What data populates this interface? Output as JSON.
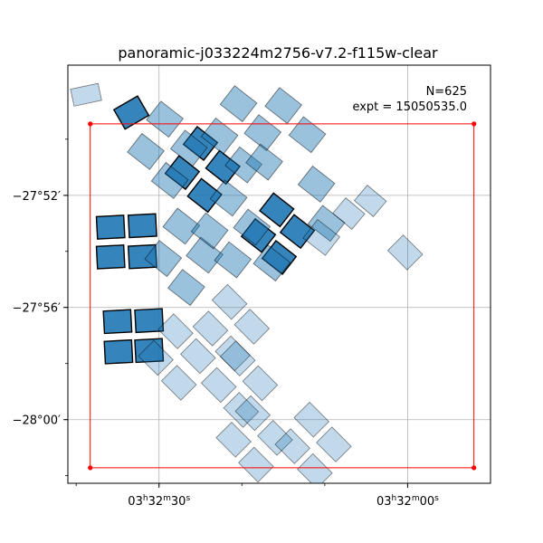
{
  "chart_data": {
    "type": "scatter",
    "title": "panoramic-j033224m2756-v7.2-f115w-clear",
    "annotation_lines": [
      "N=625",
      "expt = 15050535.0"
    ],
    "xlabel": "",
    "ylabel": "",
    "x_unit": "RA (hh:mm:ss)",
    "y_unit": "Dec (deg)",
    "xlim": [
      "03:32:41.0",
      "03:31:50.0"
    ],
    "ylim": [
      -28.0378,
      -27.7893
    ],
    "x_ticks": [
      {
        "value": "03:32:30",
        "label_html": "03<tspan baseline-shift='super' font-size='9'>h</tspan>32<tspan baseline-shift='super' font-size='9'>m</tspan>30<tspan baseline-shift='super' font-size='9'>s</tspan>"
      },
      {
        "value": "03:32:00",
        "label_html": "03<tspan baseline-shift='super' font-size='9'>h</tspan>32<tspan baseline-shift='super' font-size='9'>m</tspan>00<tspan baseline-shift='super' font-size='9'>s</tspan>"
      }
    ],
    "y_ticks": [
      {
        "value": -27.8667,
        "label": "−27°52′"
      },
      {
        "value": -27.9333,
        "label": "−27°56′"
      },
      {
        "value": -28.0,
        "label": "−28°00′"
      }
    ],
    "grid": true,
    "colors": {
      "footprint": "#1f77b4",
      "footprint_edge": "#000000",
      "boundary": "#ff0000",
      "grid": "#b0b0b0"
    },
    "boundary_box": {
      "corners": [
        {
          "x": "03:32:38.3",
          "y": -27.8242
        },
        {
          "x": "03:31:52.0",
          "y": -27.8242
        },
        {
          "x": "03:31:52.0",
          "y": -28.0286
        },
        {
          "x": "03:32:38.3",
          "y": -28.0286
        }
      ]
    },
    "series": [
      {
        "group": "dense-highlighted",
        "opacity": 0.9,
        "edge_width": 1.4,
        "footprints": [
          {
            "ra_s": 33.35,
            "dec": -27.8175,
            "size_s": 3.3,
            "size_dec": 0.0133,
            "angle": -30
          },
          {
            "ra_s": 35.85,
            "dec": -27.8856,
            "size_s": 3.3,
            "size_dec": 0.0133,
            "angle": -3
          },
          {
            "ra_s": 32.0,
            "dec": -27.8847,
            "size_s": 3.3,
            "size_dec": 0.0133,
            "angle": -3
          },
          {
            "ra_s": 35.85,
            "dec": -27.9033,
            "size_s": 3.3,
            "size_dec": 0.0133,
            "angle": -3
          },
          {
            "ra_s": 32.0,
            "dec": -27.9031,
            "size_s": 3.3,
            "size_dec": 0.0133,
            "angle": -3
          },
          {
            "ra_s": 35.0,
            "dec": -27.9417,
            "size_s": 3.3,
            "size_dec": 0.0133,
            "angle": -3
          },
          {
            "ra_s": 31.2,
            "dec": -27.9411,
            "size_s": 3.3,
            "size_dec": 0.0133,
            "angle": -3
          },
          {
            "ra_s": 34.9,
            "dec": -27.9597,
            "size_s": 3.3,
            "size_dec": 0.0133,
            "angle": -3
          },
          {
            "ra_s": 31.2,
            "dec": -27.9589,
            "size_s": 3.3,
            "size_dec": 0.0133,
            "angle": -3
          },
          {
            "ra_s": 25.0,
            "dec": -27.8358,
            "size_s": 3.1,
            "size_dec": 0.0133,
            "angle": 38
          },
          {
            "ra_s": 22.3,
            "dec": -27.85,
            "size_s": 3.1,
            "size_dec": 0.0133,
            "angle": 38
          },
          {
            "ra_s": 27.2,
            "dec": -27.8531,
            "size_s": 3.1,
            "size_dec": 0.0133,
            "angle": 38
          },
          {
            "ra_s": 24.5,
            "dec": -27.8667,
            "size_s": 3.1,
            "size_dec": 0.0133,
            "angle": 38
          },
          {
            "ra_s": 15.8,
            "dec": -27.8753,
            "size_s": 3.1,
            "size_dec": 0.0133,
            "angle": 38
          },
          {
            "ra_s": 13.3,
            "dec": -27.8881,
            "size_s": 3.1,
            "size_dec": 0.0133,
            "angle": 38
          },
          {
            "ra_s": 18.0,
            "dec": -27.8906,
            "size_s": 3.1,
            "size_dec": 0.0133,
            "angle": 38
          },
          {
            "ra_s": 15.5,
            "dec": -27.9036,
            "size_s": 3.1,
            "size_dec": 0.0133,
            "angle": 38
          }
        ]
      },
      {
        "group": "mid-density",
        "opacity": 0.45,
        "edge_width": 0.9,
        "footprints": [
          {
            "ra_s": 29.3,
            "dec": -27.8214,
            "size_s": 3.4,
            "size_dec": 0.014,
            "angle": 38
          },
          {
            "ra_s": 26.4,
            "dec": -27.8386,
            "size_s": 3.4,
            "size_dec": 0.014,
            "angle": 38
          },
          {
            "ra_s": 31.6,
            "dec": -27.8406,
            "size_s": 3.4,
            "size_dec": 0.014,
            "angle": 38
          },
          {
            "ra_s": 28.7,
            "dec": -27.8578,
            "size_s": 3.4,
            "size_dec": 0.014,
            "angle": 38
          },
          {
            "ra_s": 20.4,
            "dec": -27.8122,
            "size_s": 3.4,
            "size_dec": 0.014,
            "angle": 38
          },
          {
            "ra_s": 17.5,
            "dec": -27.8294,
            "size_s": 3.4,
            "size_dec": 0.014,
            "angle": 38
          },
          {
            "ra_s": 22.7,
            "dec": -27.8314,
            "size_s": 3.4,
            "size_dec": 0.014,
            "angle": 38
          },
          {
            "ra_s": 19.8,
            "dec": -27.8486,
            "size_s": 3.4,
            "size_dec": 0.014,
            "angle": 38
          },
          {
            "ra_s": 15.0,
            "dec": -27.8133,
            "size_s": 3.4,
            "size_dec": 0.014,
            "angle": 38
          },
          {
            "ra_s": 12.1,
            "dec": -27.8306,
            "size_s": 3.4,
            "size_dec": 0.014,
            "angle": 38
          },
          {
            "ra_s": 17.3,
            "dec": -27.8469,
            "size_s": 3.4,
            "size_dec": 0.014,
            "angle": 38
          },
          {
            "ra_s": 11.0,
            "dec": -27.86,
            "size_s": 3.4,
            "size_dec": 0.014,
            "angle": 38
          },
          {
            "ra_s": 9.8,
            "dec": -27.8833,
            "size_s": 3.4,
            "size_dec": 0.014,
            "angle": 38
          },
          {
            "ra_s": 27.3,
            "dec": -27.885,
            "size_s": 3.4,
            "size_dec": 0.014,
            "angle": 38
          },
          {
            "ra_s": 24.5,
            "dec": -27.9022,
            "size_s": 3.4,
            "size_dec": 0.014,
            "angle": 38
          },
          {
            "ra_s": 29.5,
            "dec": -27.9042,
            "size_s": 3.4,
            "size_dec": 0.014,
            "angle": 38
          },
          {
            "ra_s": 26.7,
            "dec": -27.9214,
            "size_s": 3.4,
            "size_dec": 0.014,
            "angle": 38
          },
          {
            "ra_s": 21.6,
            "dec": -27.8683,
            "size_s": 3.4,
            "size_dec": 0.014,
            "angle": 38
          },
          {
            "ra_s": 18.8,
            "dec": -27.8856,
            "size_s": 3.4,
            "size_dec": 0.014,
            "angle": 38
          },
          {
            "ra_s": 23.9,
            "dec": -27.8878,
            "size_s": 3.4,
            "size_dec": 0.014,
            "angle": 38
          },
          {
            "ra_s": 21.1,
            "dec": -27.905,
            "size_s": 3.4,
            "size_dec": 0.014,
            "angle": 38
          },
          {
            "ra_s": 16.4,
            "dec": -27.9069,
            "size_s": 3.4,
            "size_dec": 0.014,
            "angle": 38
          }
        ]
      },
      {
        "group": "low-density",
        "opacity": 0.28,
        "edge_width": 0.8,
        "footprints": [
          {
            "ra_s": 38.8,
            "dec": -27.8069,
            "size_s": 3.4,
            "size_dec": 0.0103,
            "angle": -12
          },
          {
            "ra_s": 10.4,
            "dec": -27.8917,
            "size_s": 3.4,
            "size_dec": 0.014,
            "angle": 38
          },
          {
            "ra_s": 21.5,
            "dec": -27.93,
            "size_s": 3.3,
            "size_dec": 0.013,
            "angle": 45
          },
          {
            "ra_s": 18.8,
            "dec": -27.9447,
            "size_s": 3.3,
            "size_dec": 0.013,
            "angle": 45
          },
          {
            "ra_s": 23.8,
            "dec": -27.9458,
            "size_s": 3.3,
            "size_dec": 0.013,
            "angle": 45
          },
          {
            "ra_s": 21.1,
            "dec": -27.9606,
            "size_s": 3.3,
            "size_dec": 0.013,
            "angle": 45
          },
          {
            "ra_s": 28.0,
            "dec": -27.9475,
            "size_s": 3.3,
            "size_dec": 0.013,
            "angle": 45
          },
          {
            "ra_s": 25.3,
            "dec": -27.9622,
            "size_s": 3.3,
            "size_dec": 0.013,
            "angle": 45
          },
          {
            "ra_s": 30.4,
            "dec": -27.9633,
            "size_s": 3.3,
            "size_dec": 0.013,
            "angle": 45
          },
          {
            "ra_s": 27.6,
            "dec": -27.9781,
            "size_s": 3.3,
            "size_dec": 0.013,
            "angle": 45
          },
          {
            "ra_s": 20.5,
            "dec": -27.9636,
            "size_s": 3.3,
            "size_dec": 0.013,
            "angle": 45
          },
          {
            "ra_s": 17.8,
            "dec": -27.9783,
            "size_s": 3.3,
            "size_dec": 0.013,
            "angle": 45
          },
          {
            "ra_s": 22.8,
            "dec": -27.9794,
            "size_s": 3.3,
            "size_dec": 0.013,
            "angle": 45
          },
          {
            "ra_s": 20.1,
            "dec": -27.9942,
            "size_s": 3.3,
            "size_dec": 0.013,
            "angle": 45
          },
          {
            "ra_s": 18.7,
            "dec": -27.9961,
            "size_s": 3.3,
            "size_dec": 0.013,
            "angle": 45
          },
          {
            "ra_s": 16.0,
            "dec": -28.0108,
            "size_s": 3.3,
            "size_dec": 0.013,
            "angle": 45
          },
          {
            "ra_s": 21.0,
            "dec": -28.0119,
            "size_s": 3.3,
            "size_dec": 0.013,
            "angle": 45
          },
          {
            "ra_s": 18.3,
            "dec": -28.0267,
            "size_s": 3.3,
            "size_dec": 0.013,
            "angle": 45
          },
          {
            "ra_s": 11.6,
            "dec": -28.0,
            "size_s": 3.3,
            "size_dec": 0.013,
            "angle": 45
          },
          {
            "ra_s": 8.9,
            "dec": -28.0147,
            "size_s": 3.3,
            "size_dec": 0.013,
            "angle": 45
          },
          {
            "ra_s": 13.9,
            "dec": -28.0158,
            "size_s": 3.3,
            "size_dec": 0.013,
            "angle": 45
          },
          {
            "ra_s": 11.2,
            "dec": -28.0306,
            "size_s": 3.3,
            "size_dec": 0.013,
            "angle": 45
          },
          {
            "ra_s": 0.3,
            "dec": -27.9006,
            "size_s": 3.3,
            "size_dec": 0.013,
            "angle": 45
          },
          {
            "ra_s": 57.6,
            "dec": -27.9153,
            "size_s": 3.3,
            "size_dec": 0.013,
            "angle": 45
          },
          {
            "ra_s": 62.6,
            "dec": -27.9164,
            "size_s": 3.3,
            "size_dec": 0.013,
            "angle": 45
          },
          {
            "ra_s": 59.9,
            "dec": -27.9311,
            "size_s": 3.3,
            "size_dec": 0.013,
            "angle": 45
          },
          {
            "ra_s": 4.5,
            "dec": -27.87,
            "size_s": 3.0,
            "size_dec": 0.012,
            "angle": 40
          },
          {
            "ra_s": 7.1,
            "dec": -27.8775,
            "size_s": 3.0,
            "size_dec": 0.012,
            "angle": 40
          }
        ]
      }
    ]
  }
}
